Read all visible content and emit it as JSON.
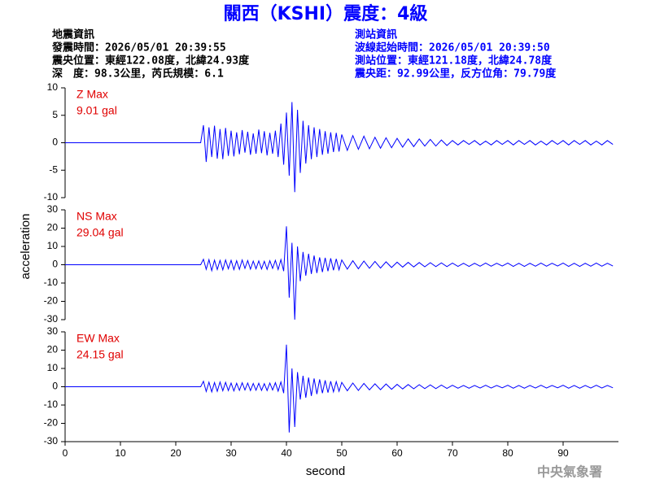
{
  "header": {
    "title": "關西（KSHI）震度：4級",
    "left": [
      "地震資訊",
      "發震時間：2026/05/01 20:39:55",
      "震央位置：東經122.08度，北緯24.93度",
      "深　度：98.3公里，芮氏規模：6.1"
    ],
    "right": [
      "測站資訊",
      "波線起始時間：2026/05/01 20:39:50",
      "測站位置：東經121.18度，北緯24.78度",
      "震央距：92.99公里，反方位角：79.79度"
    ],
    "footer": "中央氣象署"
  },
  "chart_data": {
    "type": "line",
    "xlabel": "second",
    "ylabel": "acceleration",
    "xlim": [
      0,
      100
    ],
    "xticks": [
      0,
      10,
      20,
      30,
      40,
      50,
      60,
      70,
      80,
      90
    ],
    "x": [
      0,
      24.5,
      25,
      25.5,
      26,
      26.5,
      27,
      27.5,
      28,
      28.5,
      29,
      29.5,
      30,
      30.5,
      31,
      31.5,
      32,
      32.5,
      33,
      33.5,
      34,
      34.5,
      35,
      35.5,
      36,
      36.5,
      37,
      37.5,
      38,
      38.5,
      39,
      39.5,
      40,
      40.5,
      41,
      41.5,
      42,
      42.5,
      43,
      43.5,
      44,
      44.5,
      45,
      45.5,
      46,
      46.5,
      47,
      47.5,
      48,
      48.5,
      49,
      49.5,
      50,
      51,
      52,
      53,
      54,
      55,
      56,
      57,
      58,
      59,
      60,
      61,
      62,
      63,
      64,
      65,
      66,
      67,
      68,
      69,
      70,
      71,
      72,
      73,
      74,
      75,
      76,
      77,
      78,
      79,
      80,
      81,
      82,
      83,
      84,
      85,
      86,
      87,
      88,
      89,
      90,
      91,
      92,
      93,
      94,
      95,
      96,
      97,
      98,
      99
    ],
    "series": [
      {
        "name": "Z Max",
        "max_label": "9.01 gal",
        "color": "#0000ff",
        "label_color": "#e00000",
        "ylim": [
          -10,
          10
        ],
        "yticks": [
          -10,
          -5,
          0,
          5,
          10
        ],
        "values": [
          0,
          0,
          3.2,
          -3.5,
          2.8,
          -2.6,
          3.1,
          -2.9,
          2.5,
          -3,
          2.7,
          -2.4,
          2.2,
          -2.5,
          1.9,
          -2.1,
          2.3,
          -1.8,
          2,
          -2.2,
          1.7,
          -2,
          2.4,
          -1.9,
          2.1,
          -2.3,
          1.8,
          -2,
          2.2,
          -2.6,
          3.5,
          -4,
          5.5,
          -6,
          7.4,
          -9,
          6,
          -5.5,
          4,
          -3.8,
          3.2,
          -3,
          2.8,
          -2.6,
          2.5,
          -2.2,
          2.1,
          -2,
          1.9,
          -1.7,
          1.8,
          -1.6,
          1.5,
          -1.4,
          1.3,
          -1.2,
          1.2,
          -1.1,
          1,
          -1,
          0.9,
          -0.9,
          0.8,
          -0.8,
          0.7,
          -0.7,
          0.7,
          -0.6,
          0.6,
          -0.6,
          0.5,
          -0.5,
          0.4,
          -0.4,
          0.4,
          -0.3,
          0.4,
          -0.4,
          0.3,
          -0.4,
          0.4,
          -0.3,
          0.4,
          -0.4,
          0.4,
          -0.3,
          0.4,
          -0.4,
          0.3,
          -0.4,
          0.4,
          -0.3,
          0.4,
          -0.4,
          0.4,
          -0.3,
          0.4,
          -0.4,
          0.3,
          -0.4,
          0.4,
          -0.3
        ]
      },
      {
        "name": "NS Max",
        "max_label": "29.04 gal",
        "color": "#0000ff",
        "label_color": "#e00000",
        "ylim": [
          -30,
          30
        ],
        "yticks": [
          -30,
          -20,
          -10,
          0,
          10,
          20,
          30
        ],
        "values": [
          0,
          0,
          3,
          -2.5,
          2.8,
          -3.2,
          2.5,
          -2.6,
          2.4,
          -2.8,
          2.6,
          -2.2,
          2.4,
          -2.7,
          2.2,
          -2.5,
          2.6,
          -2,
          2.3,
          -2.4,
          2,
          -2.2,
          2.1,
          -2.3,
          1.9,
          -2.5,
          2.2,
          -2,
          2.4,
          -2.6,
          2.8,
          -3.5,
          21,
          -18,
          12,
          -30,
          10,
          -9,
          7,
          -6,
          6,
          -5,
          5,
          -4.5,
          4,
          -4,
          3.8,
          -3.5,
          3.5,
          -3,
          3.2,
          -2.8,
          2.6,
          -2.4,
          2.2,
          -2.2,
          2,
          -1.9,
          1.8,
          -1.8,
          1.6,
          -1.5,
          1.4,
          -1.3,
          1.3,
          -1.2,
          1.2,
          -1.1,
          1.1,
          -1,
          1,
          -1,
          0.9,
          -0.9,
          0.8,
          -0.9,
          0.8,
          -0.8,
          0.9,
          -0.8,
          0.8,
          -0.7,
          0.9,
          -0.9,
          0.8,
          -0.9,
          0.8,
          -0.8,
          0.9,
          -0.8,
          0.8,
          -0.7,
          0.9,
          -0.9,
          0.8,
          -0.9,
          0.8,
          -0.8,
          0.9,
          -0.8,
          0.8,
          -0.7
        ]
      },
      {
        "name": "EW Max",
        "max_label": "24.15 gal",
        "color": "#0000ff",
        "label_color": "#e00000",
        "ylim": [
          -30,
          30
        ],
        "yticks": [
          -30,
          -20,
          -10,
          0,
          10,
          20,
          30
        ],
        "values": [
          0,
          0,
          3,
          -2.6,
          2.5,
          -2.8,
          2.3,
          -2.5,
          2.6,
          -2.2,
          2.4,
          -2.1,
          2,
          -2.3,
          1.9,
          -2,
          2.2,
          -1.8,
          2,
          -2.1,
          1.8,
          -1.9,
          1.9,
          -2,
          1.7,
          -2.1,
          2,
          -1.8,
          2.2,
          -2.4,
          2.6,
          -3.5,
          23,
          -25,
          10,
          -22,
          8,
          -7,
          6,
          -6,
          5,
          -5,
          4.5,
          -4,
          4,
          -3.5,
          3.5,
          -3.2,
          3,
          -2.8,
          2.8,
          -2.5,
          2.4,
          -2.2,
          2,
          -2,
          1.8,
          -1.7,
          1.6,
          -1.6,
          1.5,
          -1.4,
          1.3,
          -1.2,
          1.2,
          -1.1,
          1.1,
          -1,
          1,
          -1,
          0.9,
          -0.9,
          0.8,
          -0.8,
          0.7,
          -0.8,
          0.7,
          -0.7,
          0.8,
          -0.7,
          0.7,
          -0.6,
          0.8,
          -0.8,
          0.7,
          -0.8,
          0.7,
          -0.7,
          0.8,
          -0.7,
          0.7,
          -0.6,
          0.8,
          -0.8,
          0.7,
          -0.8,
          0.7,
          -0.7,
          0.8,
          -0.7,
          0.7,
          -0.6
        ]
      }
    ]
  }
}
